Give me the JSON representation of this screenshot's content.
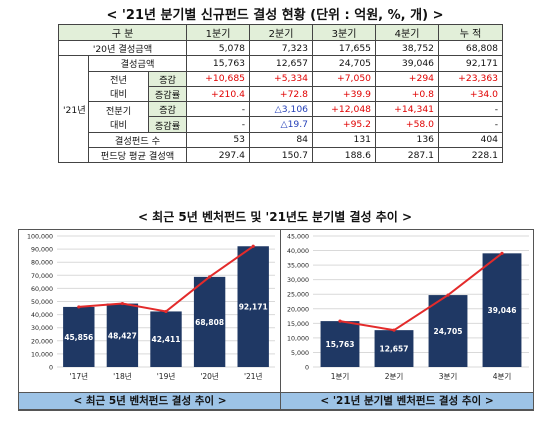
{
  "table": {
    "title": "< '21년 분기별 신규펀드 결성 현황 (단위 : 억원, %, 개) >",
    "header": [
      "구   분",
      "1분기",
      "2분기",
      "3분기",
      "4분기",
      "누  적"
    ],
    "row_2020": {
      "label": "'20년 결성금액",
      "values": [
        "5,078",
        "7,323",
        "17,655",
        "38,752",
        "68,808"
      ]
    },
    "group_2021": "'21년",
    "row_amount": {
      "label": "결성금액",
      "values": [
        "15,763",
        "12,657",
        "24,705",
        "39,046",
        "92,171"
      ]
    },
    "yoy": {
      "label_line1": "전년",
      "label_line2": "대비",
      "change_label": "증감",
      "change_values": [
        "+10,685",
        "+5,334",
        "+7,050",
        "+294",
        "+23,363"
      ],
      "rate_label": "증감률",
      "rate_values": [
        "+210.4",
        "+72.8",
        "+39.9",
        "+0.8",
        "+34.0"
      ]
    },
    "qoq": {
      "label_line1": "전분기",
      "label_line2": "대비",
      "change_label": "증감",
      "change_values": [
        "-",
        "△3,106",
        "+12,048",
        "+14,341",
        "-"
      ],
      "rate_label": "증감률",
      "rate_values": [
        "-",
        "△19.7",
        "+95.2",
        "+58.0",
        "-"
      ]
    },
    "row_count": {
      "label": "결성펀드 수",
      "values": [
        "53",
        "84",
        "131",
        "136",
        "404"
      ]
    },
    "row_avg": {
      "label": "펀드당 평균 결성액",
      "values": [
        "297.4",
        "150.7",
        "188.6",
        "287.1",
        "228.1"
      ]
    }
  },
  "charts_title": "< 최근 5년 벤처펀드 및 '21년도 분기별 결성 추이 >",
  "chart_data": [
    {
      "type": "bar",
      "categories": [
        "'17년",
        "'18년",
        "'19년",
        "'20년",
        "'21년"
      ],
      "values": [
        45856,
        48427,
        42411,
        68808,
        92171
      ],
      "value_labels": [
        "45,856",
        "48,427",
        "42,411",
        "68,808",
        "92,171"
      ],
      "trend_line": true,
      "ylim": [
        0,
        100000
      ],
      "yticks": [
        "0",
        "10,000",
        "20,000",
        "30,000",
        "40,000",
        "50,000",
        "60,000",
        "70,000",
        "80,000",
        "90,000",
        "100,000"
      ],
      "caption": "< 최근 5년 벤처펀드 결성 추이 >",
      "bar_color": "#1f3864",
      "line_color": "#e32b2b"
    },
    {
      "type": "bar",
      "categories": [
        "1분기",
        "2분기",
        "3분기",
        "4분기"
      ],
      "values": [
        15763,
        12657,
        24705,
        39046
      ],
      "value_labels": [
        "15,763",
        "12,657",
        "24,705",
        "39,046"
      ],
      "trend_line": true,
      "ylim": [
        0,
        45000
      ],
      "yticks": [
        "0",
        "5,000",
        "10,000",
        "15,000",
        "20,000",
        "25,000",
        "30,000",
        "35,000",
        "40,000",
        "45,000"
      ],
      "caption": "< '21년 분기별 벤처펀드 결성 추이 >",
      "bar_color": "#1f3864",
      "line_color": "#e32b2b"
    }
  ]
}
